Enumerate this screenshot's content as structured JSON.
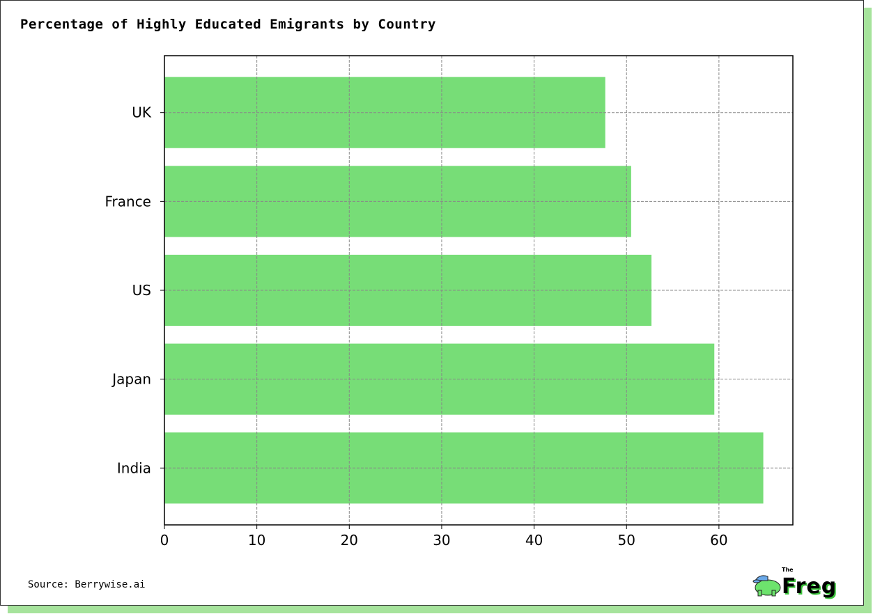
{
  "chart_data": {
    "type": "bar",
    "orientation": "horizontal",
    "title": "Percentage of Highly Educated Emigrants by Country",
    "categories": [
      "India",
      "Japan",
      "US",
      "France",
      "UK"
    ],
    "values": [
      64.8,
      59.5,
      52.7,
      50.5,
      47.7
    ],
    "xlabel": "",
    "ylabel": "",
    "xlim": [
      0,
      68
    ],
    "xticks": [
      0,
      10,
      20,
      30,
      40,
      50,
      60
    ],
    "grid": true,
    "bar_color": "#77dd77"
  },
  "source": "Source: Berrywise.ai",
  "logo": {
    "small": "The",
    "name": "Freg"
  }
}
